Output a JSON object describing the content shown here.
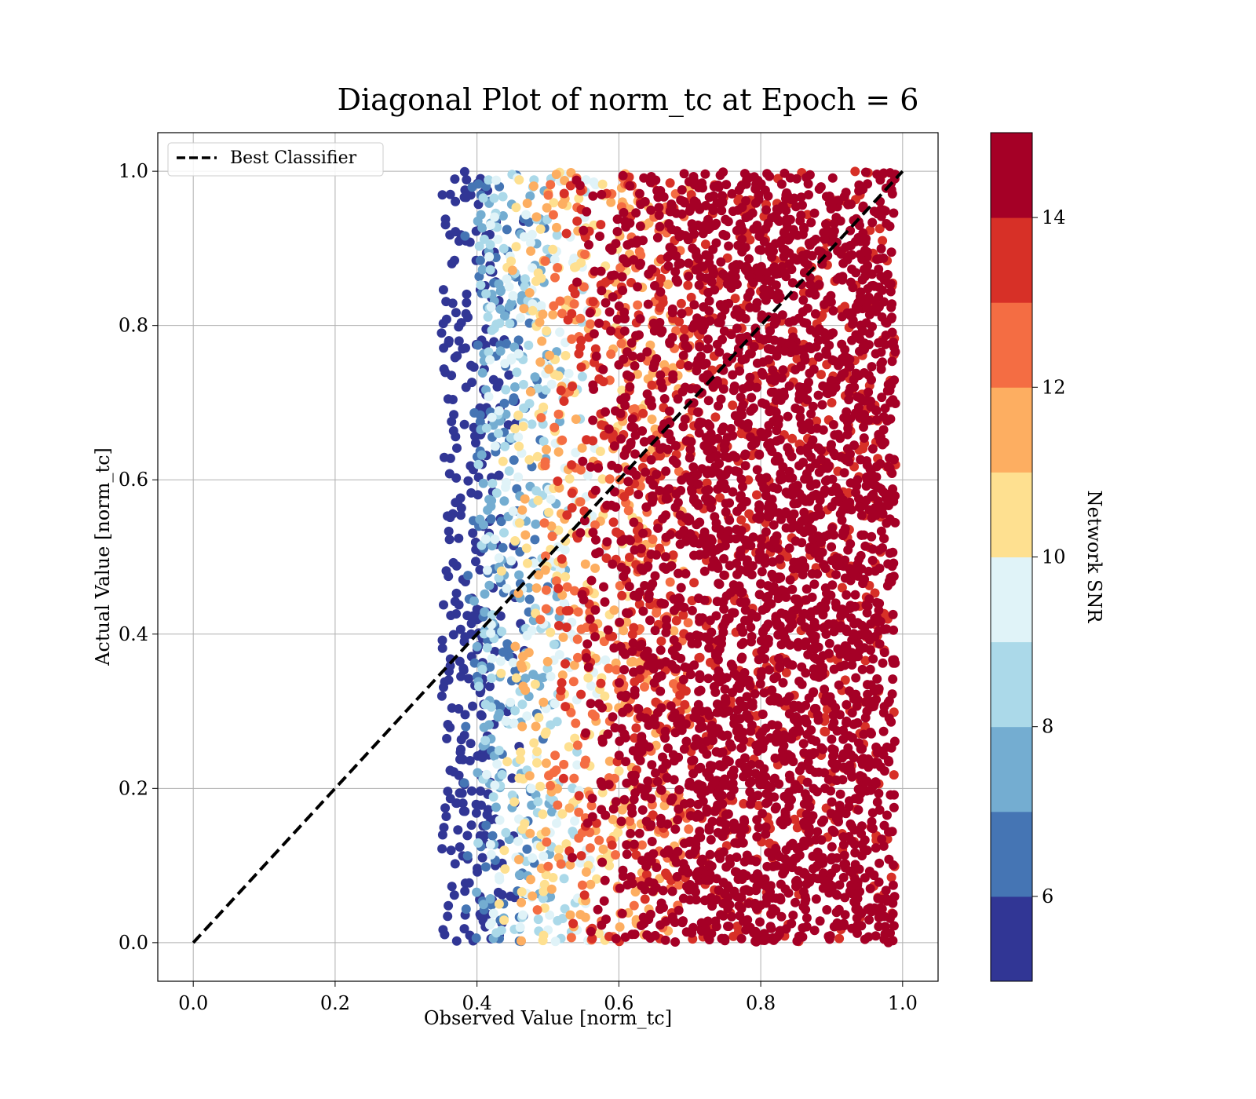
{
  "chart_data": {
    "type": "scatter",
    "title": "Diagonal Plot of norm_tc at Epoch = 6",
    "xlabel": "Observed Value [norm_tc]",
    "ylabel": "Actual Value [norm_tc]",
    "xlim": [
      -0.05,
      1.05
    ],
    "ylim": [
      -0.05,
      1.05
    ],
    "xticks": [
      "0.0",
      "0.2",
      "0.4",
      "0.6",
      "0.8",
      "1.0"
    ],
    "yticks": [
      "0.0",
      "0.2",
      "0.4",
      "0.6",
      "0.8",
      "1.0"
    ],
    "grid": true,
    "legend": {
      "placement": "upper-left",
      "entries": [
        {
          "label": "Best Classifier",
          "style": "dashed",
          "color": "#000000"
        }
      ]
    },
    "reference_line": {
      "name": "Best Classifier",
      "x": [
        0,
        1
      ],
      "y": [
        0,
        1
      ]
    },
    "colorbar": {
      "label": "Network SNR",
      "range": [
        5,
        15
      ],
      "ticks": [
        "6",
        "8",
        "10",
        "12",
        "14"
      ],
      "colors": [
        "#313695",
        "#4575b4",
        "#74add1",
        "#abd9e9",
        "#e0f3f8",
        "#fee090",
        "#fdae61",
        "#f46d43",
        "#d73027",
        "#a50026"
      ]
    },
    "scatter_summary": {
      "x_range": [
        0.35,
        0.99
      ],
      "y_range": [
        0.0,
        1.0
      ],
      "color_trend": "Network SNR increases with observed value: about 5-7 near x=0.40-0.43, 8-11 near x=0.45-0.55, 12-14 near x=0.55-0.70, mostly 14-15 above x=0.70"
    }
  }
}
